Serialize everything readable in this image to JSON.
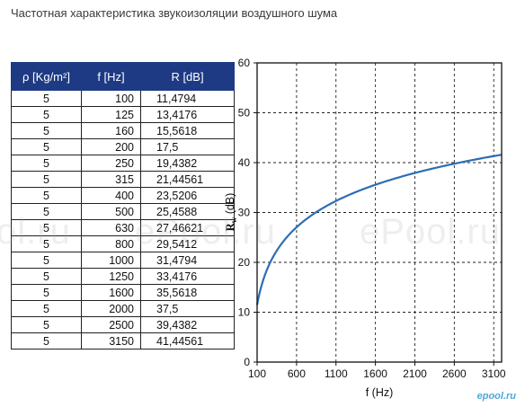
{
  "page": {
    "title": "Частотная характеристика звукоизоляции воздушного шума"
  },
  "table": {
    "headers": [
      "ρ [Kg/m²]",
      "f [Hz]",
      "R [dB]"
    ],
    "rows": [
      [
        "5",
        "100",
        "11,4794"
      ],
      [
        "5",
        "125",
        "13,4176"
      ],
      [
        "5",
        "160",
        "15,5618"
      ],
      [
        "5",
        "200",
        "17,5"
      ],
      [
        "5",
        "250",
        "19,4382"
      ],
      [
        "5",
        "315",
        "21,44561"
      ],
      [
        "5",
        "400",
        "23,5206"
      ],
      [
        "5",
        "500",
        "25,4588"
      ],
      [
        "5",
        "630",
        "27,46621"
      ],
      [
        "5",
        "800",
        "29,5412"
      ],
      [
        "5",
        "1000",
        "31,4794"
      ],
      [
        "5",
        "1250",
        "33,4176"
      ],
      [
        "5",
        "1600",
        "35,5618"
      ],
      [
        "5",
        "2000",
        "37,5"
      ],
      [
        "5",
        "2500",
        "39,4382"
      ],
      [
        "5",
        "3150",
        "41,44561"
      ]
    ]
  },
  "chart_data": {
    "type": "line",
    "xlabel": "f (Hz)",
    "ylabel_main": "R",
    "ylabel_sub": "w",
    "ylabel_unit": " (dB)",
    "xlim": [
      100,
      3200
    ],
    "ylim": [
      0,
      60
    ],
    "xticks": [
      100,
      600,
      1100,
      1600,
      2100,
      2600,
      3100
    ],
    "yticks": [
      0,
      10,
      20,
      30,
      40,
      50,
      60
    ],
    "grid": true,
    "line_color": "#2e6db4",
    "series": [
      {
        "x": [
          100,
          125,
          160,
          200,
          250,
          315,
          400,
          500,
          630,
          800,
          1000,
          1250,
          1600,
          2000,
          2500,
          3150
        ],
        "y": [
          11.4794,
          13.4176,
          15.5618,
          17.5,
          19.4382,
          21.44561,
          23.5206,
          25.4588,
          27.46621,
          29.5412,
          31.4794,
          33.4176,
          35.5618,
          37.5,
          39.4382,
          41.44561
        ]
      }
    ]
  },
  "watermarks": {
    "large": "ePool.ru",
    "left_fragment": "ol.ru",
    "small": "epool.ru"
  }
}
